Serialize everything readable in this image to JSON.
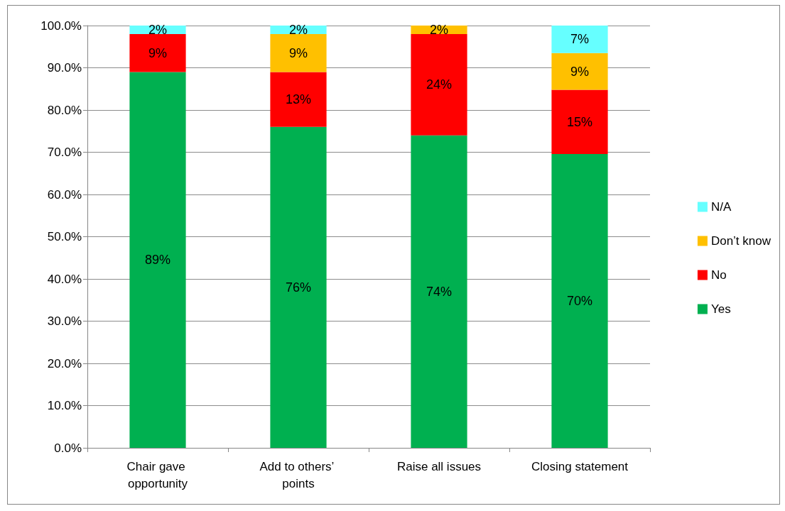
{
  "chart_data": {
    "type": "bar",
    "stacked": true,
    "categories": [
      "Chair gave opportunity",
      "Add to others’ points",
      "Raise all issues",
      "Closing statement"
    ],
    "series": [
      {
        "name": "Yes",
        "color": "#00b050",
        "values": [
          89,
          76,
          74,
          69.6
        ],
        "value_labels": [
          "89%",
          "76%",
          "74%",
          "70%"
        ]
      },
      {
        "name": "No",
        "color": "#ff0000",
        "values": [
          9,
          13,
          24,
          15.2
        ],
        "value_labels": [
          "9%",
          "13%",
          "24%",
          "15%"
        ]
      },
      {
        "name": "Don’t know",
        "color": "#ffc000",
        "values": [
          null,
          9,
          2,
          8.7
        ],
        "value_labels": [
          null,
          "9%",
          "2%",
          "9%"
        ]
      },
      {
        "name": "N/A",
        "color": "#66ffff",
        "values": [
          2,
          2,
          null,
          6.5
        ],
        "value_labels": [
          "2%",
          "2%",
          null,
          "7%"
        ]
      }
    ],
    "ylim": [
      0,
      100
    ],
    "yticks": [
      {
        "value": 0,
        "label": "0.0%"
      },
      {
        "value": 10,
        "label": "10.0%"
      },
      {
        "value": 20,
        "label": "20.0%"
      },
      {
        "value": 30,
        "label": "30.0%"
      },
      {
        "value": 40,
        "label": "40.0%"
      },
      {
        "value": 50,
        "label": "50.0%"
      },
      {
        "value": 60,
        "label": "60.0%"
      },
      {
        "value": 70,
        "label": "70.0%"
      },
      {
        "value": 80,
        "label": "80.0%"
      },
      {
        "value": 90,
        "label": "90.0%"
      },
      {
        "value": 100,
        "label": "100.0%"
      }
    ],
    "grid": "y",
    "legend": "right"
  }
}
